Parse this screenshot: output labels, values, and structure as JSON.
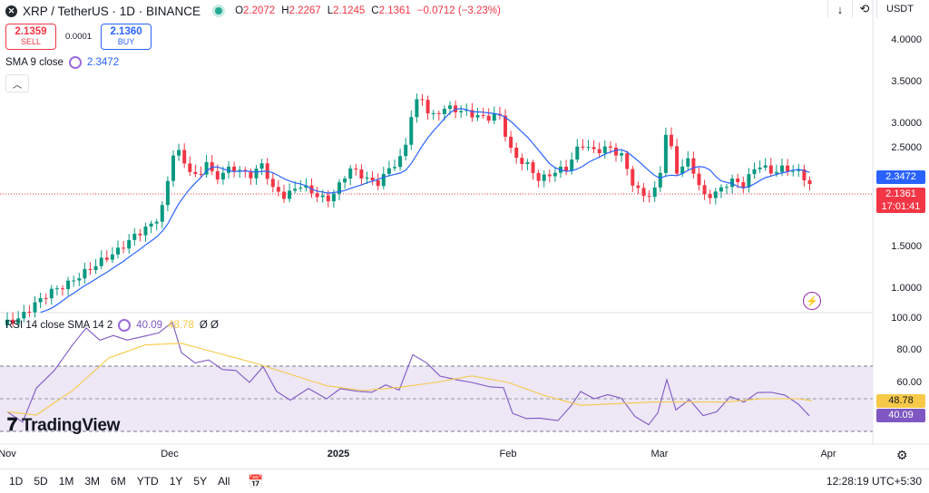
{
  "header": {
    "symbol_logo": "xrp-logo-icon",
    "title": "XRP / TetherUS · 1D · BINANCE",
    "ohlc": [
      {
        "key": "O",
        "value": "2.2072"
      },
      {
        "key": "H",
        "value": "2.2267"
      },
      {
        "key": "L",
        "value": "2.1245"
      },
      {
        "key": "C",
        "value": "2.1361"
      },
      {
        "key": "",
        "value": "−0.0712 (−3.23%)"
      }
    ],
    "change_color": "#f23645"
  },
  "trade": {
    "sell_price": "2.1359",
    "sell_label": "SELL",
    "spread": "0.0001",
    "buy_price": "2.1360",
    "buy_label": "BUY"
  },
  "sma": {
    "label": "SMA 9 close",
    "value": "2.3472",
    "color": "#2962ff"
  },
  "rsi": {
    "label": "RSI 14 close SMA 14 2",
    "rsi_value": "40.09",
    "sma_value": "48.78",
    "extra": "Ø Ø",
    "rsi_color": "#7e57c2",
    "sma_color": "#f7c948"
  },
  "toolbar": {
    "currency": "USDT",
    "download_icon": "download-icon",
    "refresh_icon": "refresh-icon"
  },
  "price_axis": [
    "4.0000",
    "3.5000",
    "3.0000",
    "2.5000",
    "1.5000",
    "1.0000"
  ],
  "rsi_axis": [
    "100.00",
    "80.00",
    "60.00"
  ],
  "tags": {
    "sma_tag": "2.3472",
    "price_tag": "2.1361",
    "countdown": "17:01:41",
    "rsi_sma_tag": "48.78",
    "rsi_tag": "40.09"
  },
  "time_axis": [
    {
      "label": "Nov",
      "bold": false
    },
    {
      "label": "Dec",
      "bold": false
    },
    {
      "label": "2025",
      "bold": true
    },
    {
      "label": "Feb",
      "bold": false
    },
    {
      "label": "Mar",
      "bold": false
    },
    {
      "label": "Apr",
      "bold": false
    }
  ],
  "ranges": [
    "1D",
    "5D",
    "1M",
    "3M",
    "6M",
    "YTD",
    "1Y",
    "5Y",
    "All"
  ],
  "clock": "12:28:19 UTC+5:30",
  "brand": "TradingView",
  "colors": {
    "up": "#089981",
    "down": "#f23645",
    "sma_line": "#2962ff",
    "rsi_line": "#7e57c2",
    "rsi_sma": "#f7c948",
    "rsi_band": "#ede7f6"
  }
}
